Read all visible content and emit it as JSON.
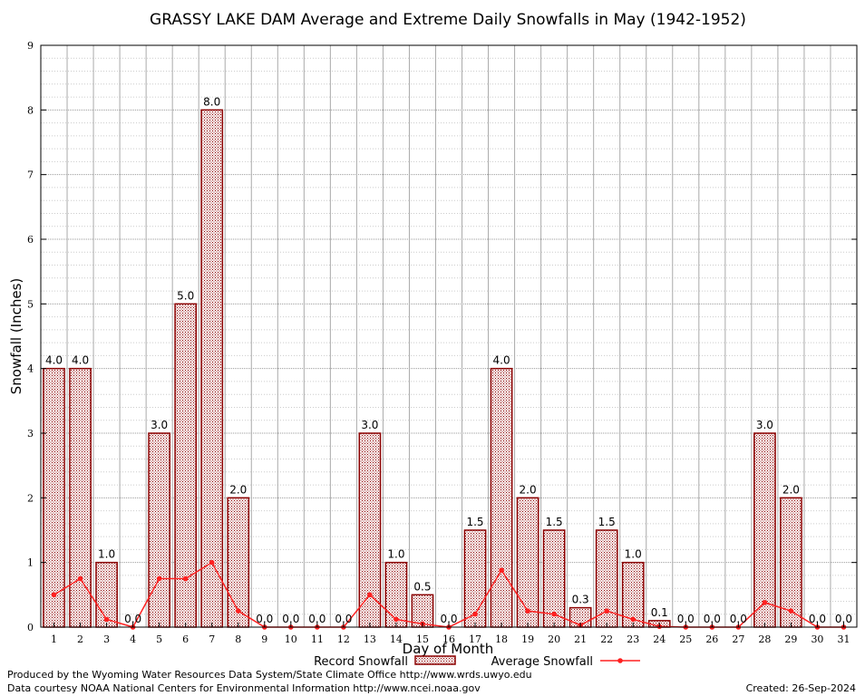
{
  "chart_data": {
    "type": "bar",
    "title": "GRASSY LAKE DAM Average and Extreme Daily Snowfalls in May (1942-1952)",
    "xlabel": "Day of Month",
    "ylabel": "Snowfall (Inches)",
    "ylim": [
      0,
      9
    ],
    "yticks": [
      "0",
      "1",
      "2",
      "3",
      "4",
      "5",
      "6",
      "7",
      "8",
      "9"
    ],
    "categories": [
      "1",
      "2",
      "3",
      "4",
      "5",
      "6",
      "7",
      "8",
      "9",
      "10",
      "11",
      "12",
      "13",
      "14",
      "15",
      "16",
      "17",
      "18",
      "19",
      "20",
      "21",
      "22",
      "23",
      "24",
      "25",
      "26",
      "27",
      "28",
      "29",
      "30",
      "31"
    ],
    "grid": true,
    "legend_position": "bottom-center",
    "series": [
      {
        "name": "Record Snowfall",
        "type": "bar",
        "color": "#8b0000",
        "values": [
          4.0,
          4.0,
          1.0,
          0.0,
          3.0,
          5.0,
          8.0,
          2.0,
          0.0,
          0.0,
          0.0,
          0.0,
          3.0,
          1.0,
          0.5,
          0.0,
          1.5,
          4.0,
          2.0,
          1.5,
          0.3,
          1.5,
          1.0,
          0.1,
          0.0,
          0.0,
          0.0,
          3.0,
          2.0,
          0.0,
          0.0
        ],
        "labels": [
          "4.0",
          "4.0",
          "1.0",
          "0.0",
          "3.0",
          "5.0",
          "8.0",
          "2.0",
          "0.0",
          "0.0",
          "0.0",
          "0.0",
          "3.0",
          "1.0",
          "0.5",
          "0.0",
          "1.5",
          "4.0",
          "2.0",
          "1.5",
          "0.3",
          "1.5",
          "1.0",
          "0.1",
          "0.0",
          "0.0",
          "0.0",
          "3.0",
          "2.0",
          "0.0",
          "0.0"
        ]
      },
      {
        "name": "Average Snowfall",
        "type": "line",
        "color": "#ff2020",
        "values": [
          0.5,
          0.75,
          0.12,
          0.0,
          0.75,
          0.75,
          1.0,
          0.25,
          0.0,
          0.0,
          0.0,
          0.0,
          0.5,
          0.12,
          0.05,
          0.0,
          0.2,
          0.88,
          0.25,
          0.2,
          0.03,
          0.25,
          0.12,
          0.01,
          0.0,
          0.0,
          0.0,
          0.38,
          0.25,
          0.0,
          0.0
        ]
      }
    ]
  },
  "footer": {
    "credit_line1": "Produced by the Wyoming Water Resources Data System/State Climate Office http://www.wrds.uwyo.edu",
    "credit_line2": "Data courtesy NOAA National Centers for Environmental Information http://www.ncei.noaa.gov",
    "created": "Created:  26-Sep-2024"
  }
}
